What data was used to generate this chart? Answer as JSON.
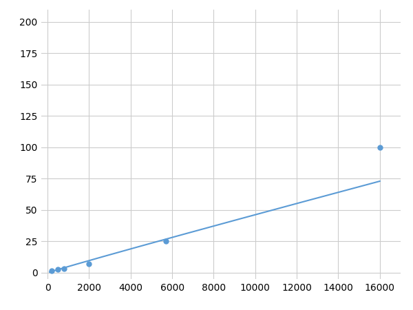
{
  "x_data": [
    200,
    500,
    800,
    2000,
    5700,
    16000
  ],
  "y_data": [
    1.5,
    2.5,
    3.0,
    7.0,
    25.0,
    100.0
  ],
  "marker_x": [
    200,
    500,
    800,
    2000,
    5700,
    16000
  ],
  "marker_y": [
    1.5,
    2.5,
    3.0,
    7.0,
    25.0,
    100.0
  ],
  "line_color": "#5b9bd5",
  "marker_color": "#5b9bd5",
  "marker_size": 5,
  "line_width": 1.5,
  "xlim": [
    -300,
    17000
  ],
  "ylim": [
    -5,
    210
  ],
  "xticks": [
    0,
    2000,
    4000,
    6000,
    8000,
    10000,
    12000,
    14000,
    16000
  ],
  "yticks": [
    0,
    25,
    50,
    75,
    100,
    125,
    150,
    175,
    200
  ],
  "grid_color": "#cccccc",
  "background_color": "#ffffff",
  "tick_fontsize": 10
}
